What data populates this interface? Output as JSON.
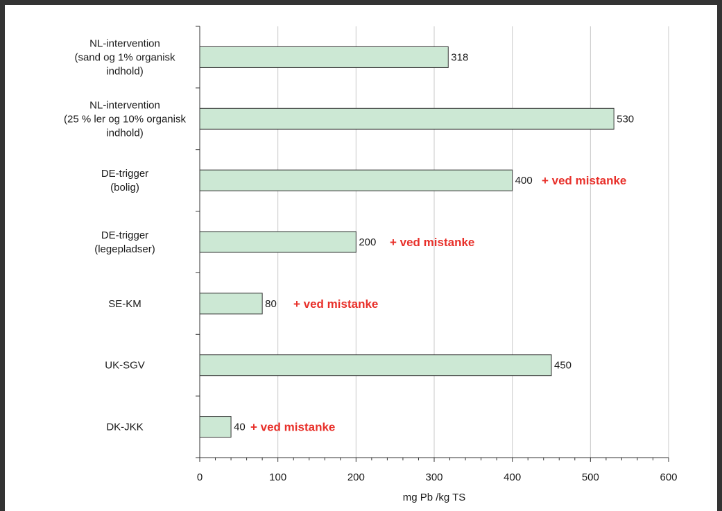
{
  "chart_data": {
    "type": "bar",
    "orientation": "horizontal",
    "title": "",
    "xlabel": "mg Pb /kg TS",
    "ylabel": "",
    "xlim": [
      0,
      600
    ],
    "xticks": [
      0,
      100,
      200,
      300,
      400,
      500,
      600
    ],
    "xtick_labels": [
      "0",
      "100",
      "200",
      "300",
      "400",
      "500",
      "600"
    ],
    "grid": "vertical",
    "legend": "none",
    "bar_color": "#cce8d4",
    "bar_edge_color": "#333333",
    "note_color": "#e8302a",
    "categories": [
      {
        "lines": [
          "NL-intervention",
          "(sand og 1% organisk",
          "indhold)"
        ],
        "value": 318,
        "value_label": "318",
        "note": ""
      },
      {
        "lines": [
          "NL-intervention",
          "(25 % ler og 10% organisk",
          "indhold)"
        ],
        "value": 530,
        "value_label": "530",
        "note": ""
      },
      {
        "lines": [
          "DE-trigger",
          "(bolig)"
        ],
        "value": 400,
        "value_label": "400",
        "note": "+ ved mistanke"
      },
      {
        "lines": [
          "DE-trigger",
          "(legepladser)"
        ],
        "value": 200,
        "value_label": "200",
        "note": "+ ved mistanke"
      },
      {
        "lines": [
          "SE-KM"
        ],
        "value": 80,
        "value_label": "80",
        "note": "+ ved mistanke"
      },
      {
        "lines": [
          "UK-SGV"
        ],
        "value": 450,
        "value_label": "450",
        "note": ""
      },
      {
        "lines": [
          "DK-JKK"
        ],
        "value": 40,
        "value_label": "40",
        "note": "+ ved mistanke"
      }
    ]
  }
}
